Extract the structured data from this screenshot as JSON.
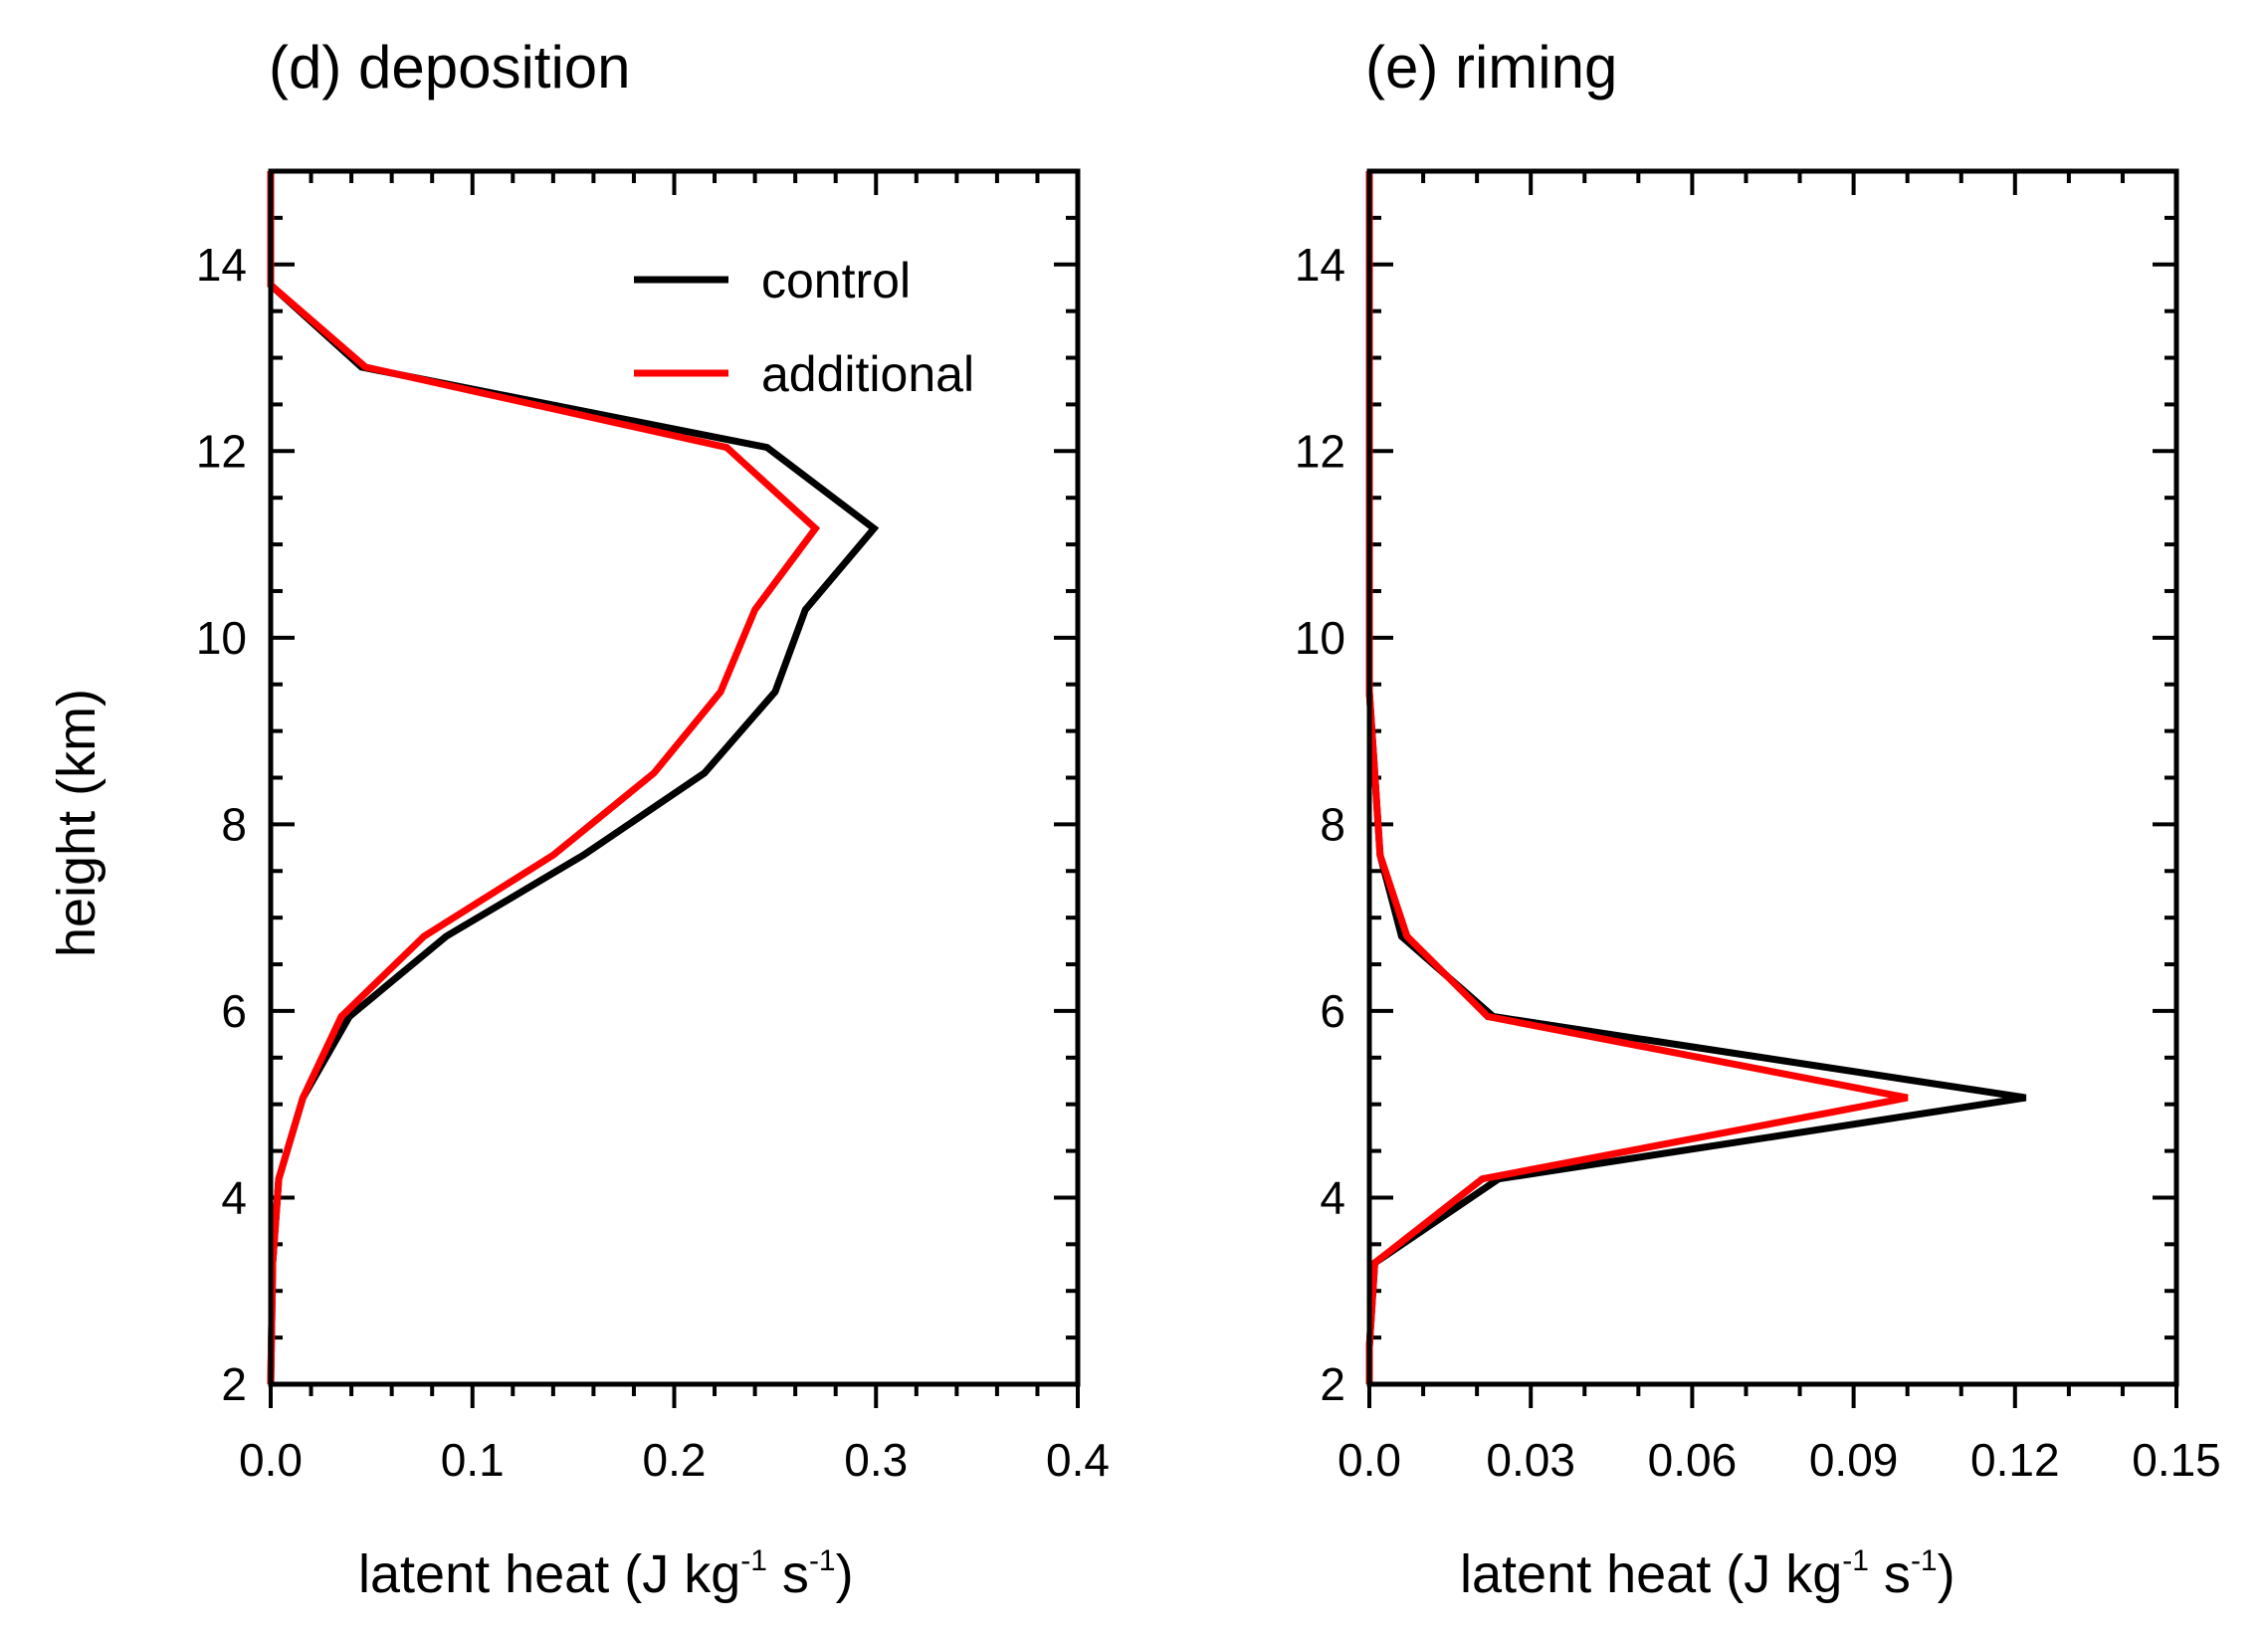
{
  "chart_data": [
    {
      "type": "line",
      "title": "(d) deposition",
      "xlabel": "latent heat (J kg",
      "xlabel_exp1": "-1",
      "xlabel_mid": " s",
      "xlabel_exp2": "-1",
      "xlabel_end": ")",
      "ylabel": "height (km)",
      "xlim": [
        0,
        0.4
      ],
      "ylim": [
        2,
        15
      ],
      "xticks": [
        0,
        0.1,
        0.2,
        0.3,
        0.4
      ],
      "xtick_labels": [
        "0.0",
        "0.1",
        "0.2",
        "0.3",
        "0.4"
      ],
      "yticks": [
        2,
        4,
        6,
        8,
        10,
        12,
        14
      ],
      "ytick_labels": [
        "2",
        "4",
        "6",
        "8",
        "10",
        "12",
        "14"
      ],
      "legend_position": "top-right",
      "series": [
        {
          "name": "control",
          "color": "#000000",
          "x": [
            0.0,
            0.001,
            0.004,
            0.016,
            0.039,
            0.087,
            0.155,
            0.215,
            0.25,
            0.265,
            0.299,
            0.246,
            0.045,
            0.0,
            0.0,
            0.0
          ],
          "y": [
            2.0,
            3.3,
            4.2,
            5.07,
            5.94,
            6.8,
            7.67,
            8.55,
            9.42,
            10.3,
            11.17,
            12.04,
            12.9,
            13.78,
            14.65,
            15.0
          ]
        },
        {
          "name": "additional",
          "color": "#ff0000",
          "x": [
            0.0,
            0.001,
            0.004,
            0.016,
            0.035,
            0.076,
            0.14,
            0.19,
            0.223,
            0.24,
            0.27,
            0.226,
            0.047,
            0.0,
            0.0,
            0.0
          ],
          "y": [
            2.0,
            3.3,
            4.2,
            5.07,
            5.94,
            6.8,
            7.67,
            8.55,
            9.42,
            10.3,
            11.17,
            12.04,
            12.9,
            13.78,
            14.65,
            15.0
          ]
        }
      ]
    },
    {
      "type": "line",
      "title": "(e) riming",
      "xlabel": "latent heat (J kg",
      "xlabel_exp1": "-1",
      "xlabel_mid": " s",
      "xlabel_exp2": "-1",
      "xlabel_end": ")",
      "xlim": [
        0,
        0.15
      ],
      "ylim": [
        2,
        15
      ],
      "xticks": [
        0,
        0.03,
        0.06,
        0.09,
        0.12,
        0.15
      ],
      "xtick_labels": [
        "0.0",
        "0.03",
        "0.06",
        "0.09",
        "0.12",
        "0.15"
      ],
      "yticks": [
        2,
        4,
        6,
        8,
        10,
        12,
        14
      ],
      "ytick_labels": [
        "2",
        "4",
        "6",
        "8",
        "10",
        "12",
        "14"
      ],
      "series": [
        {
          "name": "control",
          "color": "#000000",
          "x": [
            0.0,
            0.0,
            0.001,
            0.024,
            0.122,
            0.023,
            0.006,
            0.002,
            0.001,
            0.0,
            0.0,
            0.0,
            0.0
          ],
          "y": [
            2.0,
            2.4,
            3.3,
            4.2,
            5.07,
            5.94,
            6.8,
            7.67,
            8.55,
            9.42,
            10.3,
            11.17,
            15.0
          ]
        },
        {
          "name": "additional",
          "color": "#ff0000",
          "x": [
            0.0,
            0.0,
            0.001,
            0.021,
            0.1,
            0.022,
            0.007,
            0.002,
            0.001,
            0.0,
            0.0,
            0.0,
            0.0
          ],
          "y": [
            2.0,
            2.4,
            3.3,
            4.2,
            5.07,
            5.94,
            6.8,
            7.67,
            8.55,
            9.42,
            10.3,
            11.17,
            15.0
          ]
        }
      ]
    }
  ]
}
